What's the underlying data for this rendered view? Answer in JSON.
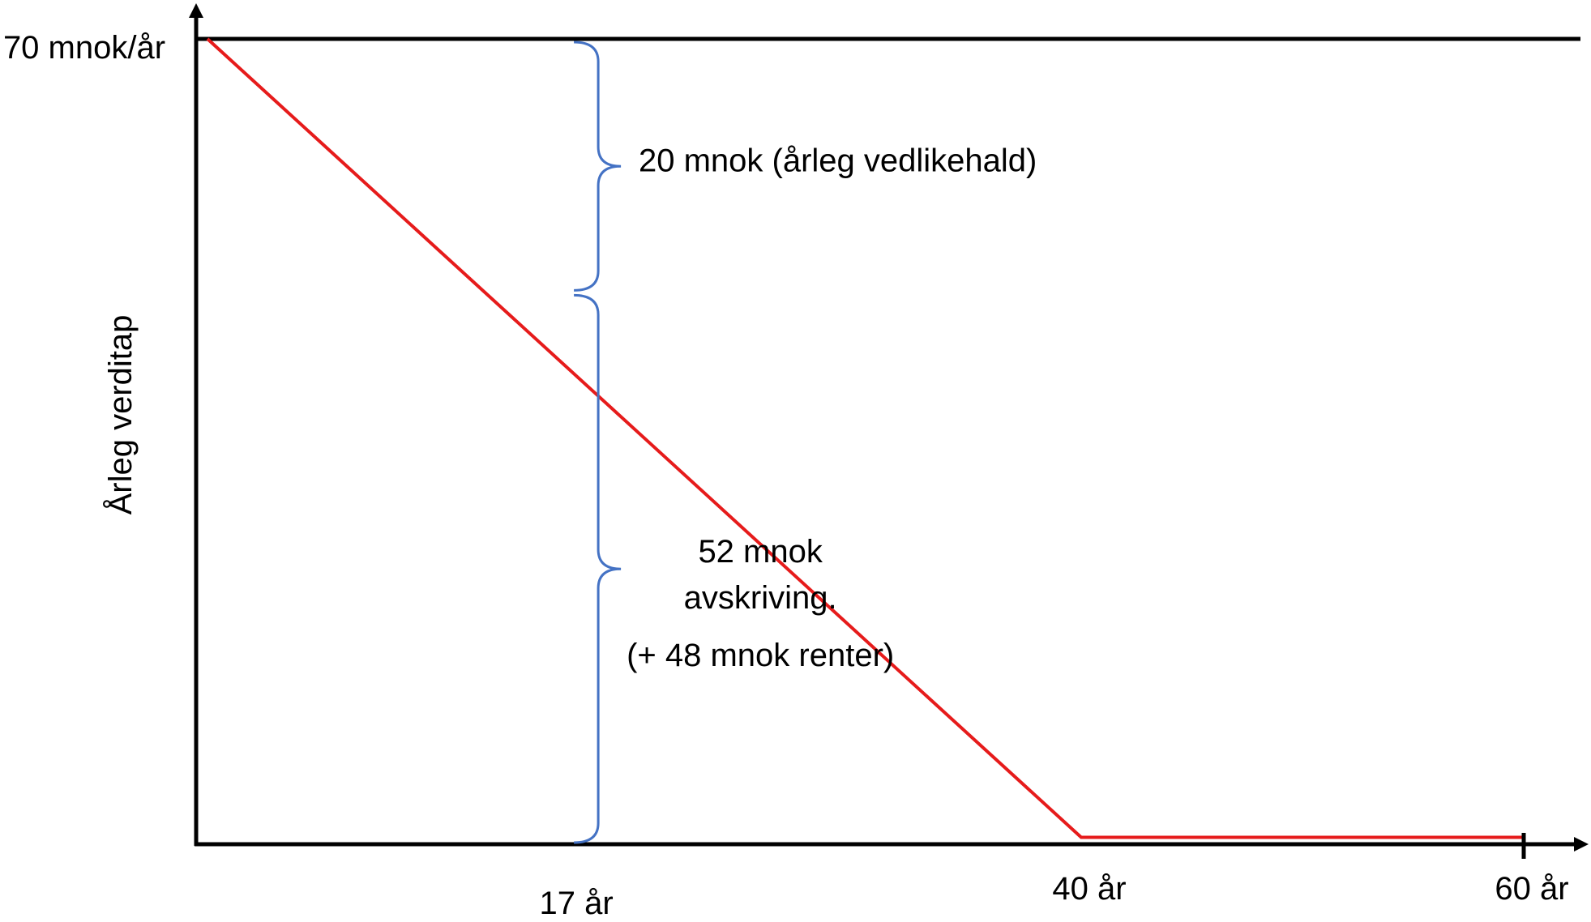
{
  "chart_data": {
    "type": "line",
    "title": "",
    "xlabel": "",
    "ylabel": "Årleg verditap",
    "x_ticks": [
      {
        "value": 17,
        "label": "17 år"
      },
      {
        "value": 40,
        "label": "40 år"
      },
      {
        "value": 60,
        "label": "60 år"
      }
    ],
    "y_ticks": [
      {
        "value": 70,
        "label": "70 mnok/år"
      }
    ],
    "xlim": [
      0,
      62
    ],
    "ylim": [
      0,
      74
    ],
    "grid": false,
    "series": [
      {
        "color": "#e61b1b",
        "points": [
          [
            0,
            70
          ],
          [
            40,
            0.6
          ],
          [
            60,
            0.6
          ]
        ]
      }
    ],
    "reference_line": {
      "y": 70,
      "color": "#000000"
    },
    "braces": [
      {
        "x": 17,
        "y_from": 70,
        "y_to": 48,
        "color": "#4472c4"
      },
      {
        "x": 17,
        "y_from": 48,
        "y_to": 0,
        "color": "#4472c4"
      }
    ],
    "annotations": [
      {
        "text": "20 mnok (årleg vedlikehald)",
        "x": 29,
        "y": 58.5
      },
      {
        "text": "52 mnok",
        "x": 25.5,
        "y": 24.5
      },
      {
        "text": "avskriving.",
        "x": 25.5,
        "y": 20.5
      },
      {
        "text": "(+ 48 mnok renter)",
        "x": 25.5,
        "y": 15.5
      }
    ],
    "axis_color": "#000000"
  }
}
